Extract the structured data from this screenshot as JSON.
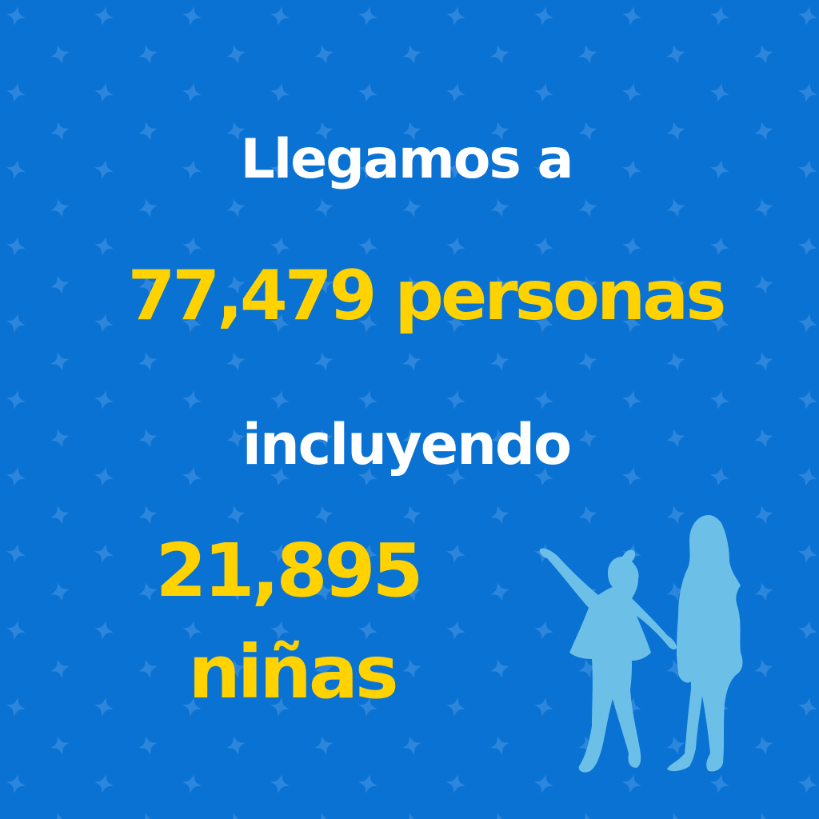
{
  "headline": {
    "line1": "Llegamos a",
    "line2": "77,479 personas",
    "line3": "incluyendo"
  },
  "highlight": {
    "count": "21,895",
    "label": "niñas"
  },
  "colors": {
    "background": "#0a72d2",
    "pattern": "#2b86dc",
    "text_white": "#ffffff",
    "text_yellow": "#ffd200",
    "silhouette": "#6cc0e8"
  },
  "icons": {
    "pattern": "star-pattern-icon",
    "children": "children-silhouette-icon"
  }
}
